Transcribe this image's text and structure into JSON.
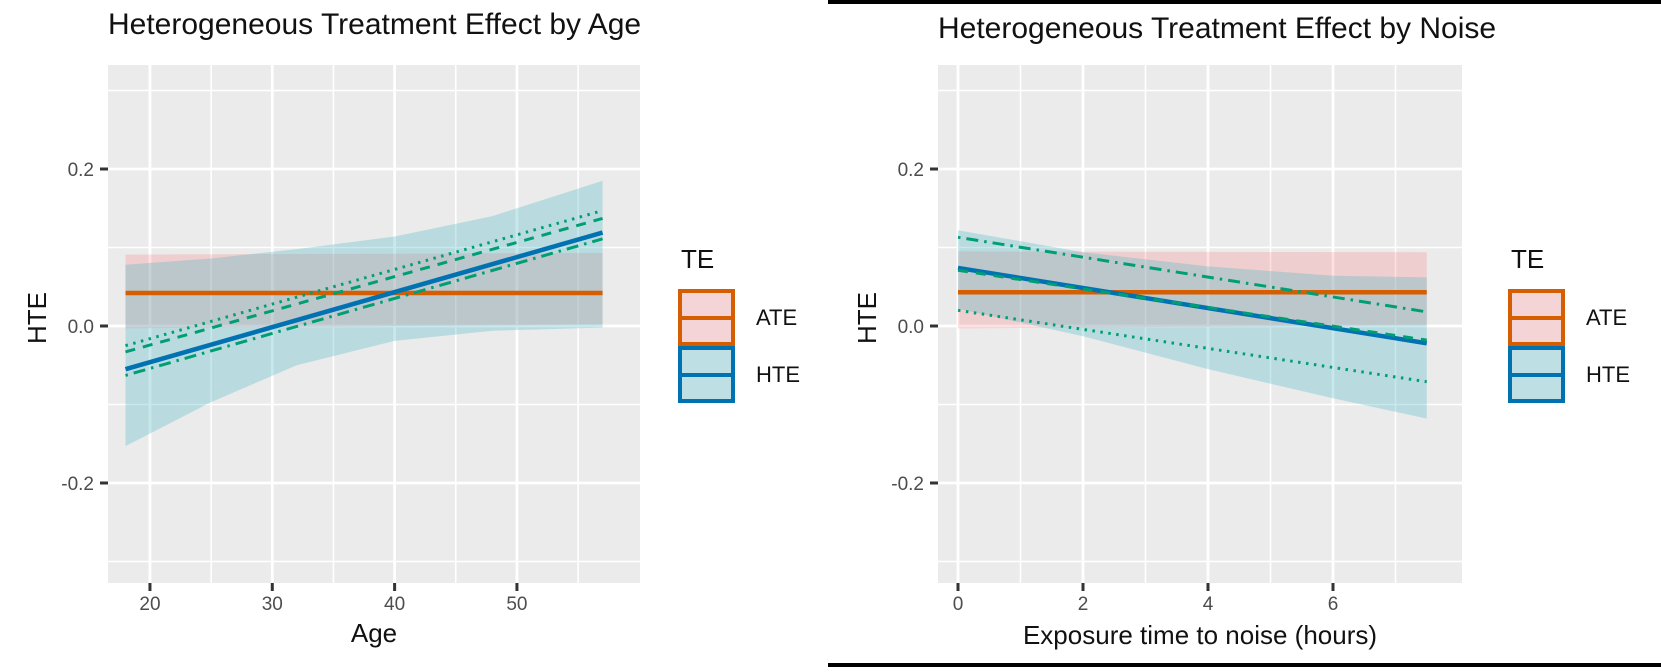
{
  "colors": {
    "ate": "#D55E00",
    "hte": "#0072B2",
    "aux_green": "#009E73",
    "panel_bg": "#EBEBEB",
    "grid": "#FFFFFF",
    "tick_mark": "#333333",
    "tick_text": "#4D4D4D",
    "rule": "#000000",
    "ate_fill": "rgba(255,40,50,0.15)",
    "hte_fill": "rgba(69,182,195,0.30)"
  },
  "legend": {
    "title": "TE",
    "items": [
      {
        "label": "ATE",
        "stroke": "#D55E00",
        "fill": "rgba(255,40,50,0.15)"
      },
      {
        "label": "HTE",
        "stroke": "#0072B2",
        "fill": "rgba(69,182,195,0.30)"
      }
    ]
  },
  "chart_data": [
    {
      "type": "line",
      "title": "Heterogeneous Treatment Effect by Age",
      "xlabel": "Age",
      "ylabel": "HTE",
      "xlim": [
        16.57,
        60.06
      ],
      "ylim": [
        -0.3274,
        0.3325
      ],
      "xticks": [
        20,
        30,
        40,
        50
      ],
      "xtick_labels": [
        "20",
        "30",
        "40",
        "50"
      ],
      "xminor": [
        25,
        35,
        45,
        55
      ],
      "yticks": [
        0.2,
        0.0,
        -0.2
      ],
      "ytick_labels": [
        "0.2",
        "0.0",
        "-0.2"
      ],
      "yminor": [
        0.3,
        0.1,
        -0.1,
        -0.3
      ],
      "grid": true,
      "legend_position": "right",
      "ribbons": [
        {
          "name": "ATE 95% CI",
          "fill_key": "ate_fill",
          "x": [
            18,
            57
          ],
          "low": [
            -0.003,
            0.002
          ],
          "high": [
            0.091,
            0.093
          ]
        },
        {
          "name": "HTE 95% CI",
          "fill_key": "hte_fill",
          "x": [
            18,
            25,
            32,
            40,
            48,
            57
          ],
          "low": [
            -0.153,
            -0.097,
            -0.05,
            -0.019,
            -0.006,
            -0.002
          ],
          "high": [
            0.078,
            0.086,
            0.098,
            0.114,
            0.14,
            0.185
          ]
        }
      ],
      "lines": [
        {
          "name": "ATE",
          "color": "#D55E00",
          "style": "solid",
          "width": 4.5,
          "x": [
            18,
            57
          ],
          "y": [
            0.042,
            0.042
          ]
        },
        {
          "name": "HTE",
          "color": "#0072B2",
          "style": "solid",
          "width": 4.5,
          "x": [
            18,
            57
          ],
          "y": [
            -0.055,
            0.119
          ]
        },
        {
          "name": "HTE-upper-dotted",
          "color": "#009E73",
          "style": "dotted",
          "width": 3,
          "x": [
            18,
            57
          ],
          "y": [
            -0.025,
            0.147
          ]
        },
        {
          "name": "HTE-dashed",
          "color": "#009E73",
          "style": "dashed",
          "width": 3,
          "x": [
            18,
            57
          ],
          "y": [
            -0.033,
            0.137
          ]
        },
        {
          "name": "HTE-lower-dotdash",
          "color": "#009E73",
          "style": "dotdash",
          "width": 3,
          "x": [
            18,
            57
          ],
          "y": [
            -0.063,
            0.111
          ]
        }
      ]
    },
    {
      "type": "line",
      "title": "Heterogeneous Treatment Effect by Noise",
      "xlabel": "Exposure time to noise (hours)",
      "ylabel": "HTE",
      "xlim": [
        -0.32,
        8.064
      ],
      "ylim": [
        -0.3274,
        0.3325
      ],
      "xticks": [
        0,
        2,
        4,
        6
      ],
      "xtick_labels": [
        "0",
        "2",
        "4",
        "6"
      ],
      "xminor": [
        1,
        3,
        5,
        7
      ],
      "yticks": [
        0.2,
        0.0,
        -0.2
      ],
      "ytick_labels": [
        "0.2",
        "0.0",
        "-0.2"
      ],
      "yminor": [
        0.3,
        0.1,
        -0.1,
        -0.3
      ],
      "grid": true,
      "legend_position": "right",
      "ribbons": [
        {
          "name": "ATE 95% CI",
          "fill_key": "ate_fill",
          "x": [
            0,
            7.5
          ],
          "low": [
            -0.003,
            0.001
          ],
          "high": [
            0.095,
            0.094
          ]
        },
        {
          "name": "HTE 95% CI",
          "fill_key": "hte_fill",
          "x": [
            0,
            2,
            4,
            6,
            7.5
          ],
          "low": [
            0.022,
            -0.013,
            -0.055,
            -0.092,
            -0.118
          ],
          "high": [
            0.122,
            0.094,
            0.076,
            0.064,
            0.062
          ]
        }
      ],
      "lines": [
        {
          "name": "ATE",
          "color": "#D55E00",
          "style": "solid",
          "width": 4.5,
          "x": [
            0,
            7.5
          ],
          "y": [
            0.043,
            0.043
          ]
        },
        {
          "name": "HTE",
          "color": "#0072B2",
          "style": "solid",
          "width": 4.5,
          "x": [
            0,
            7.5
          ],
          "y": [
            0.074,
            -0.022
          ]
        },
        {
          "name": "HTE-upper-dotdash",
          "color": "#009E73",
          "style": "dotdash",
          "width": 3,
          "x": [
            0,
            7.5
          ],
          "y": [
            0.113,
            0.018
          ]
        },
        {
          "name": "HTE-dashed",
          "color": "#009E73",
          "style": "dashed",
          "width": 3,
          "x": [
            0,
            7.5
          ],
          "y": [
            0.071,
            -0.018
          ]
        },
        {
          "name": "HTE-lower-dotted",
          "color": "#009E73",
          "style": "dotted",
          "width": 3,
          "x": [
            0,
            7.5
          ],
          "y": [
            0.02,
            -0.071
          ]
        }
      ]
    }
  ]
}
